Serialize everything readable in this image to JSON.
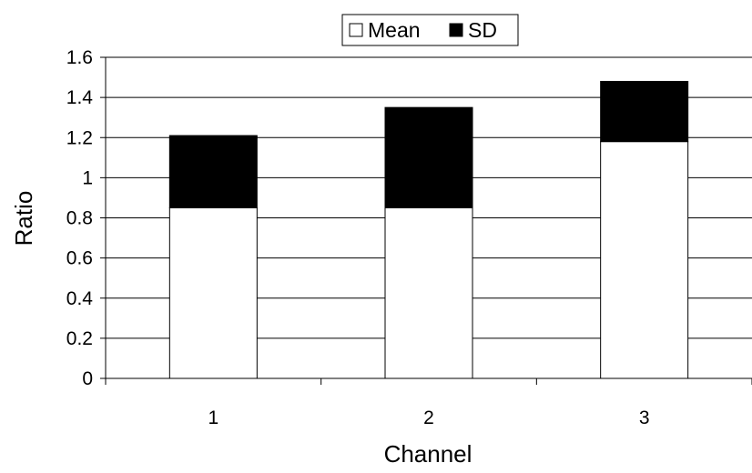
{
  "chart_data": {
    "type": "bar",
    "stacked": true,
    "categories": [
      "1",
      "2",
      "3"
    ],
    "series": [
      {
        "name": "Mean",
        "values": [
          0.85,
          0.85,
          1.18
        ],
        "color": "#ffffff"
      },
      {
        "name": "SD",
        "values": [
          0.36,
          0.5,
          0.3
        ],
        "color": "#000000"
      }
    ],
    "title": "",
    "xlabel": "Channel",
    "ylabel": "Ratio",
    "ylim": [
      0,
      1.6
    ],
    "yticks": [
      "0",
      "0.2",
      "0.4",
      "0.6",
      "0.8",
      "1",
      "1.2",
      "1.4",
      "1.6"
    ],
    "grid": true,
    "legend_position": "top"
  }
}
